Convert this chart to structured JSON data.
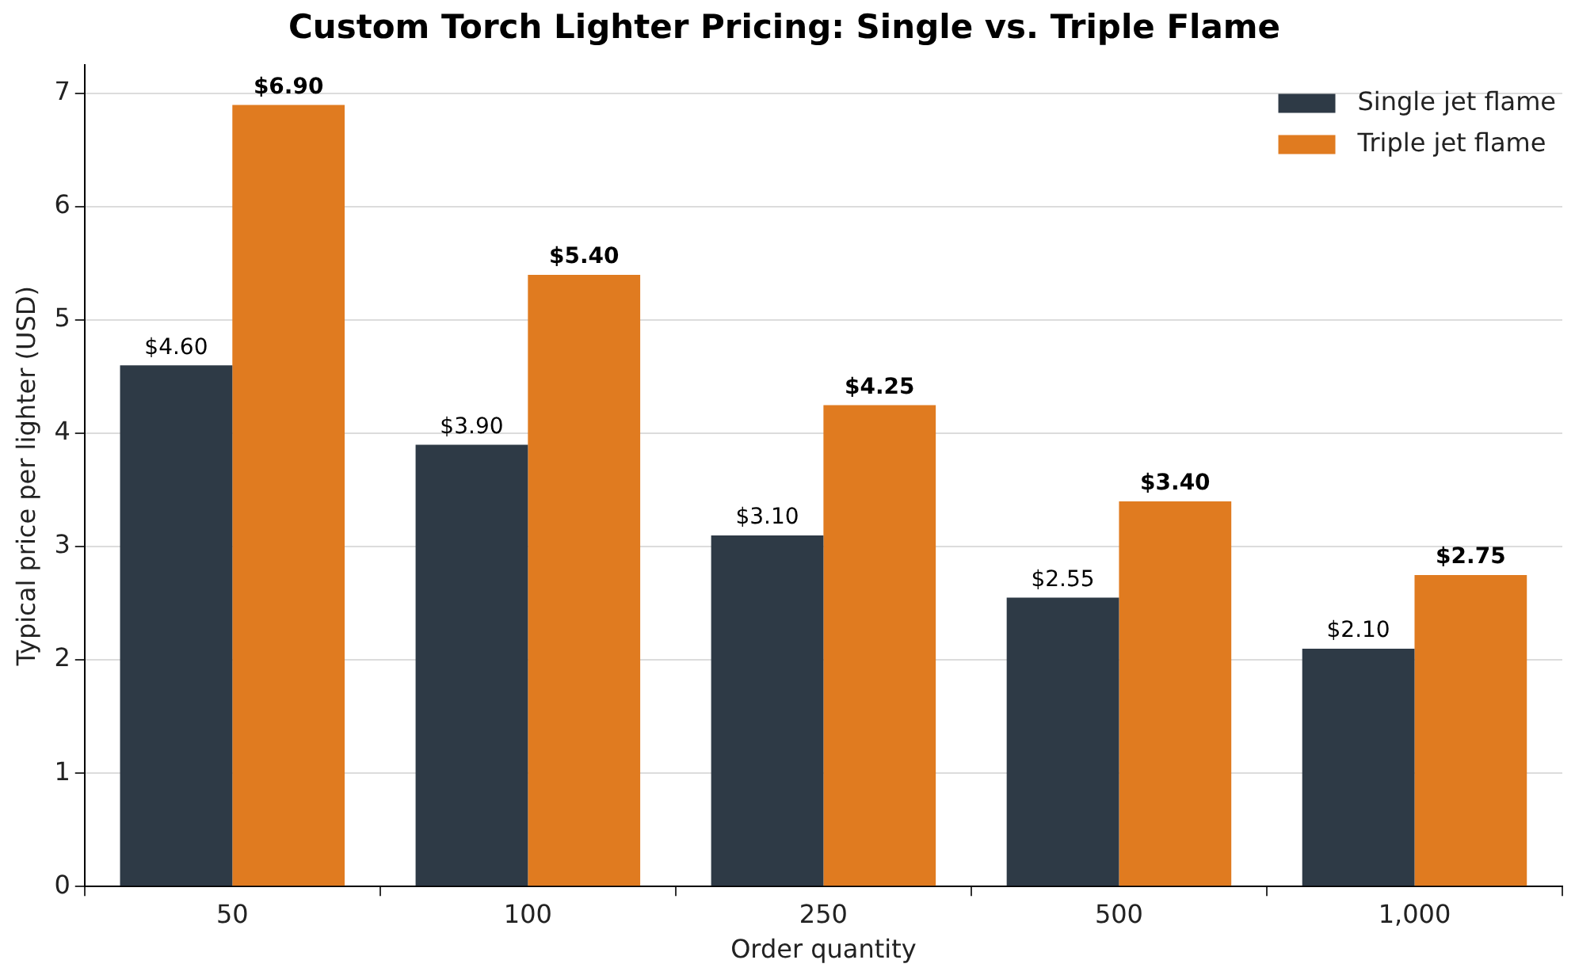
{
  "chart_data": {
    "type": "bar",
    "title": "Custom Torch Lighter Pricing: Single vs. Triple Flame",
    "xlabel": "Order quantity",
    "ylabel": "Typical price per lighter (USD)",
    "categories": [
      "50",
      "100",
      "250",
      "500",
      "1,000"
    ],
    "series": [
      {
        "name": "Single jet flame",
        "color": "#2e3a46",
        "values": [
          4.6,
          3.9,
          3.1,
          2.55,
          2.1
        ],
        "value_labels": [
          "$4.60",
          "$3.90",
          "$3.10",
          "$2.55",
          "$2.10"
        ]
      },
      {
        "name": "Triple jet flame",
        "color": "#e07b20",
        "values": [
          6.9,
          5.4,
          4.25,
          3.4,
          2.75
        ],
        "value_labels": [
          "$6.90",
          "$5.40",
          "$4.25",
          "$3.40",
          "$2.75"
        ]
      }
    ],
    "ylim": [
      0,
      7.25
    ],
    "yticks": [
      0,
      1,
      2,
      3,
      4,
      5,
      6,
      7
    ],
    "grid": "y",
    "legend": "top right"
  }
}
